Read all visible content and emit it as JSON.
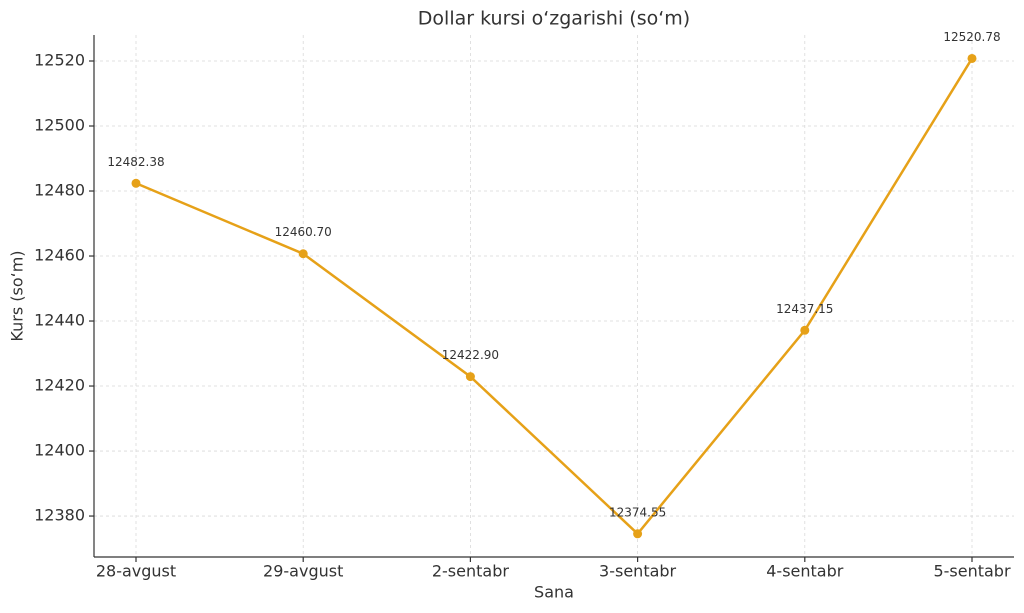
{
  "chart_data": {
    "type": "line",
    "title": "Dollar kursi o‘zgarishi (so‘m)",
    "x_label": "Sana",
    "y_label": "Kurs (so‘m)",
    "categories": [
      "28-avgust",
      "29-avgust",
      "2-sentabr",
      "3-sentabr",
      "4-sentabr",
      "5-sentabr"
    ],
    "values": [
      12482.38,
      12460.7,
      12422.9,
      12374.55,
      12437.15,
      12520.78
    ],
    "value_labels": [
      "12482.38",
      "12460.70",
      "12422.90",
      "12374.55",
      "12437.15",
      "12520.78"
    ],
    "color": "#e6a118",
    "ylim": [
      12367.4,
      12528.0
    ],
    "yticks": [
      12380,
      12400,
      12420,
      12440,
      12460,
      12480,
      12500,
      12520
    ],
    "grid": true
  }
}
